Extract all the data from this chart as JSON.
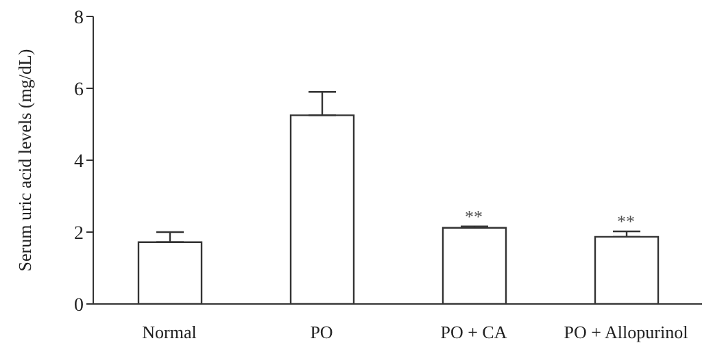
{
  "chart_data": {
    "type": "bar",
    "ylabel": "Serum uric acid levels (mg/dL)",
    "categories": [
      "Normal",
      "PO",
      "PO + CA",
      "PO + Allopurinol"
    ],
    "values": [
      1.72,
      5.25,
      2.12,
      1.87
    ],
    "errors": [
      [
        1.72,
        2.0
      ],
      [
        5.25,
        5.9
      ],
      [
        2.12,
        2.16
      ],
      [
        1.87,
        2.02
      ]
    ],
    "color": "#ffffff",
    "ylim": [
      0,
      8
    ],
    "yticks": [
      0,
      2,
      4,
      6,
      8
    ],
    "grid": false,
    "legend": false,
    "annotations": [
      {
        "text": "**",
        "x": "PO + CA",
        "y": 2.16
      },
      {
        "text": "**",
        "x": "PO + Allopurinol",
        "y": 2.02
      }
    ]
  }
}
